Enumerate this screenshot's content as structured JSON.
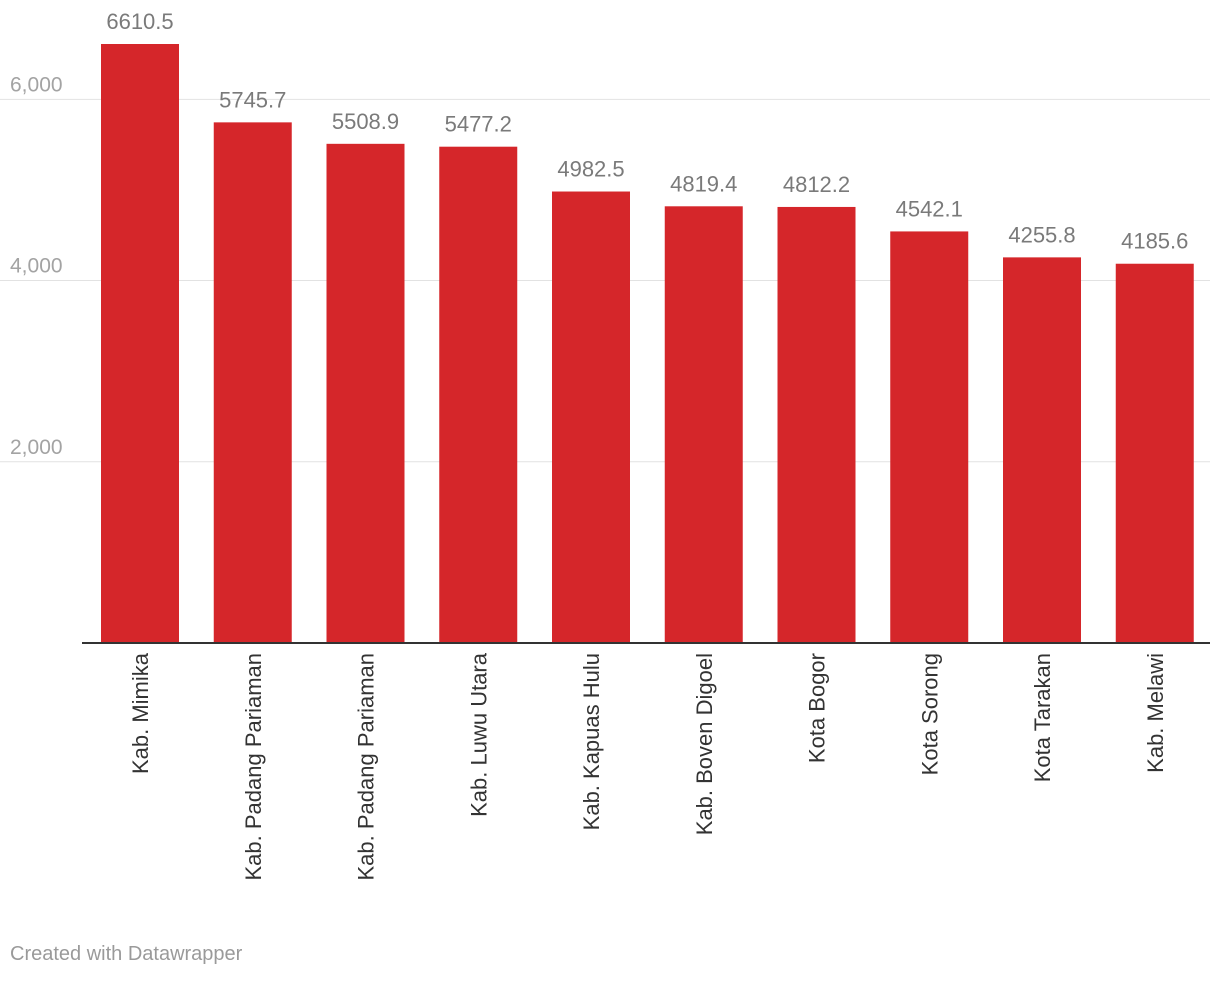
{
  "chart_data": {
    "type": "bar",
    "categories": [
      "Kab. Mimika",
      "Kab. Padang Pariaman",
      "Kab. Padang Pariaman",
      "Kab. Luwu Utara",
      "Kab. Kapuas Hulu",
      "Kab. Boven Digoel",
      "Kota Bogor",
      "Kota Sorong",
      "Kota Tarakan",
      "Kab. Melawi"
    ],
    "values": [
      6610.5,
      5745.7,
      5508.9,
      5477.2,
      4982.5,
      4819.4,
      4812.2,
      4542.1,
      4255.8,
      4185.6
    ],
    "value_labels": [
      "6610.5",
      "5745.7",
      "5508.9",
      "5477.2",
      "4982.5",
      "4819.4",
      "4812.2",
      "4542.1",
      "4255.8",
      "4185.6"
    ],
    "yticks": [
      2000,
      4000,
      6000
    ],
    "ytick_labels": [
      "2,000",
      "4,000",
      "6,000"
    ],
    "ylim": [
      0,
      6610.5
    ],
    "grid": true,
    "bar_color": "#d5262a",
    "title": "",
    "xlabel": "",
    "ylabel": ""
  },
  "footer": {
    "credit": "Created with Datawrapper"
  }
}
